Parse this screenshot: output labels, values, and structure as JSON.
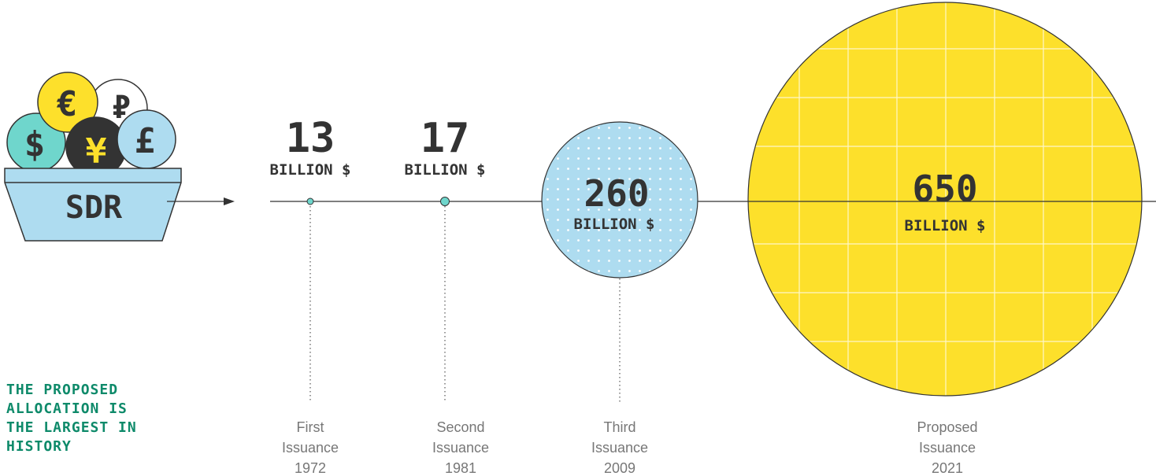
{
  "logo": {
    "basket_label": "SDR",
    "coins": [
      "€",
      "₽",
      "$",
      "¥",
      "£"
    ]
  },
  "headline": [
    "THE PROPOSED",
    "ALLOCATION IS",
    "THE LARGEST IN",
    "HISTORY"
  ],
  "issuances": [
    {
      "amount": "13",
      "unit": "BILLION $",
      "label_line1": "First",
      "label_line2": "Issuance",
      "year": "1972"
    },
    {
      "amount": "17",
      "unit": "BILLION $",
      "label_line1": "Second",
      "label_line2": "Issuance",
      "year": "1981"
    },
    {
      "amount": "260",
      "unit": "BILLION $",
      "label_line1": "Third",
      "label_line2": "Issuance",
      "year": "2009"
    },
    {
      "amount": "650",
      "unit": "BILLION $",
      "label_line1": "Proposed",
      "label_line2": "Issuance",
      "year": "2021"
    }
  ],
  "colors": {
    "text_dark": "#333333",
    "teal": "#6fd6cc",
    "light_blue": "#aedcf0",
    "yellow": "#fde02b",
    "headline_green": "#0e8a6a",
    "grey_label": "#777777"
  }
}
